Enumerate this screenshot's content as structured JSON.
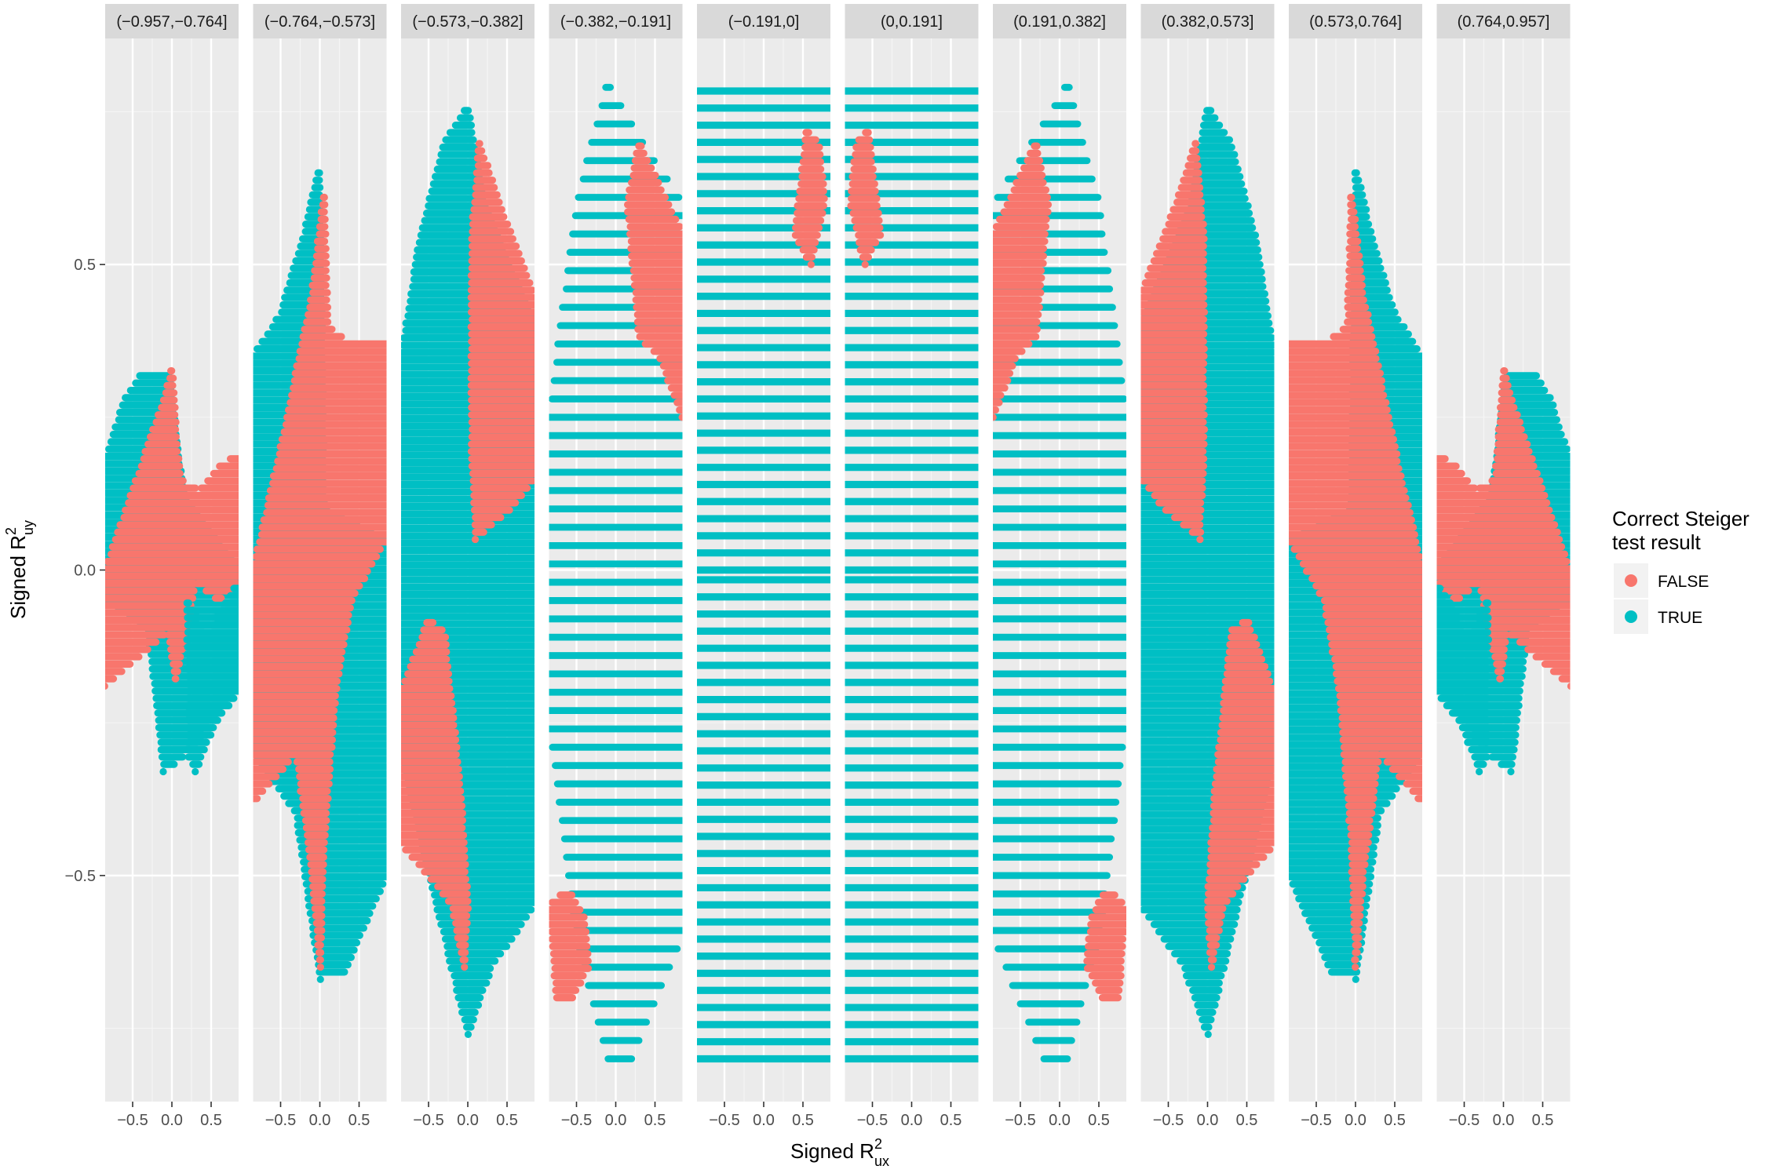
{
  "chart_data": {
    "type": "scatter",
    "title": "",
    "xlabel_main": "Signed R",
    "xlabel_sup": "2",
    "xlabel_sub": "ux",
    "ylabel_main": "Signed R",
    "ylabel_sup": "2",
    "ylabel_sub": "uy",
    "xlim": [
      -0.85,
      0.85
    ],
    "ylim": [
      -0.87,
      0.87
    ],
    "x_ticks": [
      -0.5,
      0.0,
      0.5
    ],
    "x_tick_labels": [
      "−0.5",
      "0.0",
      "0.5"
    ],
    "y_ticks": [
      0.5,
      0.0,
      -0.5
    ],
    "y_tick_labels": [
      "0.5",
      "0.0",
      "−0.5"
    ],
    "grid": true,
    "legend_position": "right",
    "legend": {
      "title_line1": "Correct Steiger",
      "title_line2": "test result",
      "entries": [
        {
          "label": "FALSE",
          "color": "#F8766D"
        },
        {
          "label": "TRUE",
          "color": "#00BFC4"
        }
      ]
    },
    "colors": {
      "FALSE": "#F8766D",
      "TRUE": "#00BFC4",
      "panel_bg": "#EBEBEB",
      "strip_bg": "#D9D9D9",
      "grid_major": "#FFFFFF"
    },
    "facets": [
      {
        "label": "(−0.957,−0.764]",
        "mirror": false,
        "kind": "outer1",
        "approx_range": {
          "x": [
            -0.85,
            0.85
          ],
          "y": [
            -0.33,
            0.33
          ]
        }
      },
      {
        "label": "(−0.764,−0.573]",
        "mirror": false,
        "kind": "outer2",
        "approx_range": {
          "x": [
            -0.85,
            0.85
          ],
          "y": [
            -0.66,
            0.66
          ]
        }
      },
      {
        "label": "(−0.573,−0.382]",
        "mirror": false,
        "kind": "outer3",
        "approx_range": {
          "x": [
            -0.85,
            0.85
          ],
          "y": [
            -0.76,
            0.76
          ]
        }
      },
      {
        "label": "(−0.382,−0.191]",
        "mirror": false,
        "kind": "mid",
        "approx_range": {
          "x": [
            -0.85,
            0.85
          ],
          "y": [
            -0.8,
            0.8
          ]
        }
      },
      {
        "label": "(−0.191,0]",
        "mirror": false,
        "kind": "center",
        "approx_range": {
          "x": [
            -0.85,
            0.85
          ],
          "y": [
            -0.8,
            0.8
          ]
        }
      },
      {
        "label": "(0,0.191]",
        "mirror": true,
        "kind": "center",
        "approx_range": {
          "x": [
            -0.85,
            0.85
          ],
          "y": [
            -0.8,
            0.8
          ]
        }
      },
      {
        "label": "(0.191,0.382]",
        "mirror": true,
        "kind": "mid",
        "approx_range": {
          "x": [
            -0.85,
            0.85
          ],
          "y": [
            -0.8,
            0.8
          ]
        }
      },
      {
        "label": "(0.382,0.573]",
        "mirror": true,
        "kind": "outer3",
        "approx_range": {
          "x": [
            -0.85,
            0.85
          ],
          "y": [
            -0.76,
            0.76
          ]
        }
      },
      {
        "label": "(0.573,0.764]",
        "mirror": true,
        "kind": "outer2",
        "approx_range": {
          "x": [
            -0.85,
            0.85
          ],
          "y": [
            -0.66,
            0.66
          ]
        }
      },
      {
        "label": "(0.764,0.957]",
        "mirror": true,
        "kind": "outer1",
        "approx_range": {
          "x": [
            -0.85,
            0.85
          ],
          "y": [
            -0.33,
            0.33
          ]
        }
      }
    ]
  }
}
